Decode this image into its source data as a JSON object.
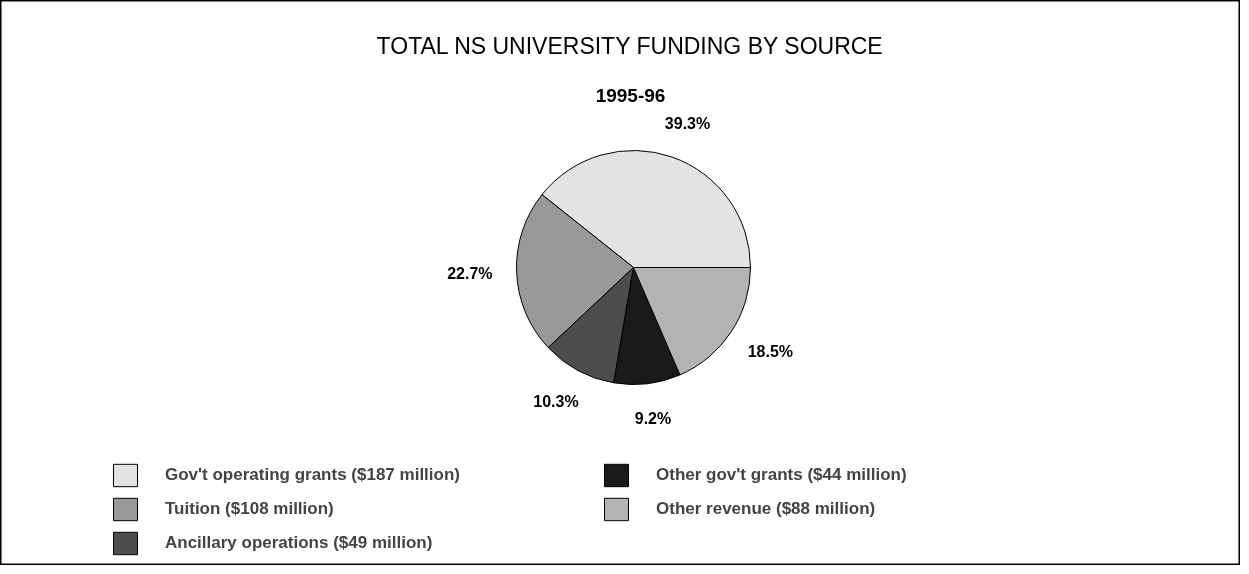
{
  "chart_data": {
    "type": "pie",
    "title": "TOTAL NS UNIVERSITY FUNDING BY SOURCE",
    "subtitle": "1995-96",
    "categories": [
      "Gov't operating grants ($187 million)",
      "Tuition ($108 million)",
      "Ancillary operations ($49 million)",
      "Other gov't grants ($44 million)",
      "Other revenue ($88 million)"
    ],
    "values": [
      39.3,
      22.7,
      10.3,
      9.2,
      18.5
    ],
    "colors": [
      "#e3e3e3",
      "#999999",
      "#4d4d4d",
      "#1a1a1a",
      "#b3b3b3"
    ],
    "value_labels": [
      "39.3%",
      "22.7%",
      "10.3%",
      "9.2%",
      "18.5%"
    ],
    "legend": "bottom"
  }
}
